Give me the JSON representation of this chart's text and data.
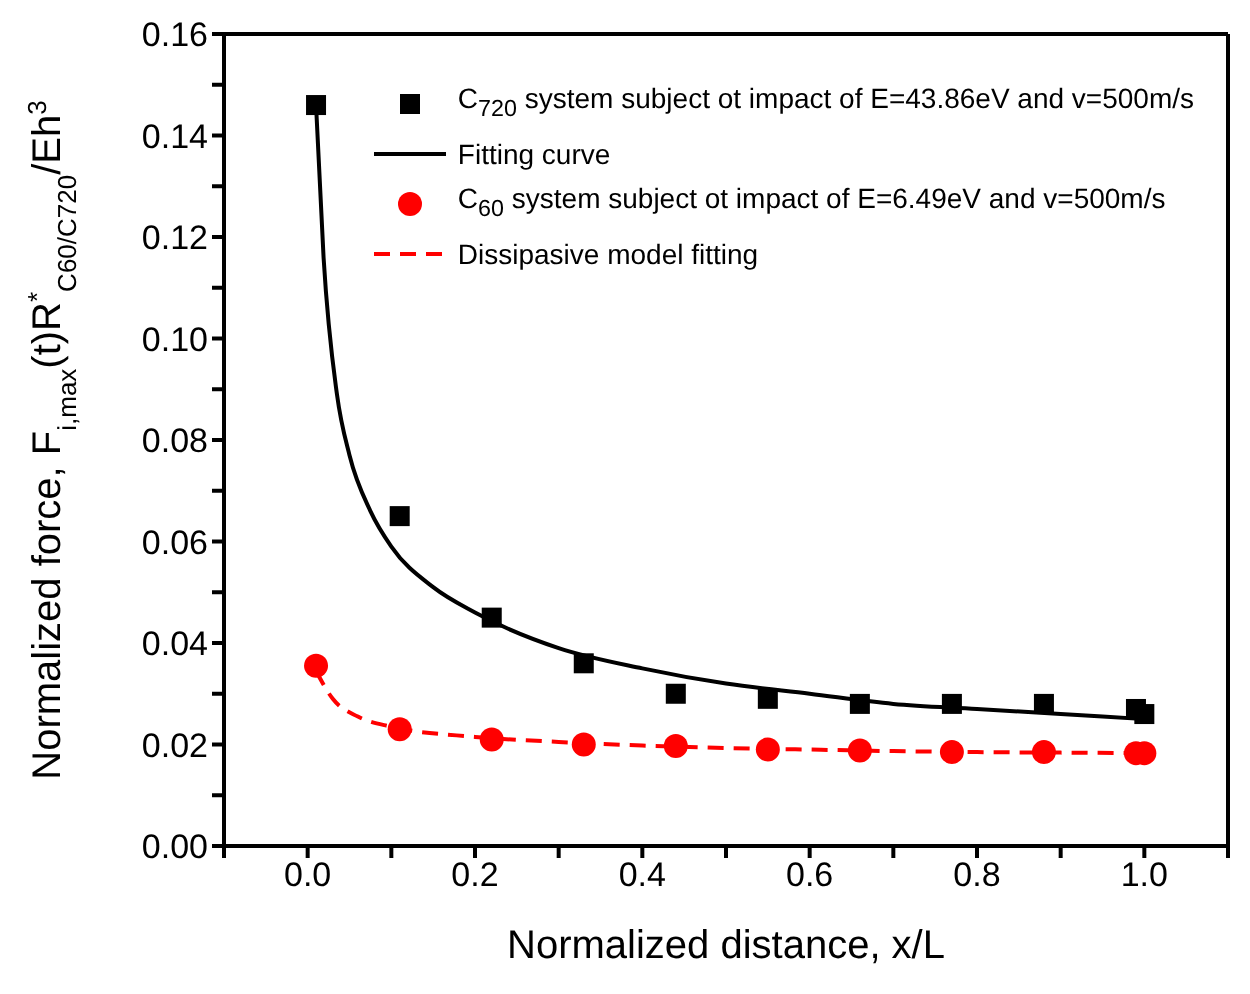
{
  "chart_data": {
    "type": "scatter",
    "xlabel": "Normalized distance, x/L",
    "ylabel": "Normalized force, F$_{i,max}$(t)R$^{*}$$_{C60/C720}$/Eh$^{3}$",
    "xlim": [
      -0.1,
      1.1
    ],
    "xticks": [
      {
        "value": -0.1,
        "label": null
      },
      {
        "value": 0,
        "label": "0.0"
      },
      {
        "value": 0.1,
        "label": null
      },
      0.2,
      {
        "value": 0.3,
        "label": null
      },
      0.4,
      {
        "value": 0.5,
        "label": null
      },
      0.6,
      {
        "value": 0.7,
        "label": null
      },
      0.8,
      {
        "value": 0.9,
        "label": null
      },
      {
        "value": 1,
        "label": "1.0"
      },
      {
        "value": 1.1,
        "label": null
      }
    ],
    "ylim": [
      0,
      0.16
    ],
    "yticks": [
      {
        "value": 0,
        "label": "0.00"
      },
      {
        "value": 0.01,
        "label": null
      },
      0.02,
      {
        "value": 0.03,
        "label": null
      },
      0.04,
      {
        "value": 0.05,
        "label": null
      },
      0.06,
      {
        "value": 0.07,
        "label": null
      },
      0.08,
      {
        "value": 0.09,
        "label": null
      },
      {
        "value": 0.1,
        "label": "0.10"
      },
      {
        "value": 0.11,
        "label": null
      },
      0.12,
      {
        "value": 0.13,
        "label": null
      },
      0.14,
      {
        "value": 0.15,
        "label": null
      },
      0.16
    ],
    "legend": "top right",
    "series": [
      {
        "name": "C$_{720}$ system subject ot impact of E=43.86eV and v=500m/s",
        "marker": "square",
        "color": "#000000",
        "x": [
          0.01,
          0.11,
          0.22,
          0.33,
          0.44,
          0.55,
          0.66,
          0.77,
          0.88,
          0.99,
          1.0
        ],
        "values": [
          0.146,
          0.065,
          0.045,
          0.036,
          0.03,
          0.029,
          0.028,
          0.028,
          0.028,
          0.027,
          0.026
        ]
      },
      {
        "name": "Fitting curve",
        "type": "line",
        "line_style": "solid",
        "color": "#000000",
        "x": [
          0.01,
          0.019,
          0.035,
          0.05,
          0.075,
          0.1,
          0.15,
          0.2,
          0.3,
          0.4,
          0.5,
          0.6,
          0.7,
          0.8,
          0.9,
          1.0
        ],
        "values": [
          0.146,
          0.116,
          0.089,
          0.077,
          0.066,
          0.059,
          0.051,
          0.046,
          0.039,
          0.035,
          0.032,
          0.03,
          0.028,
          0.027,
          0.026,
          0.025
        ]
      },
      {
        "name": "C$_{60}$ system subject ot impact of E=6.49eV and v=500m/s",
        "marker": "circle",
        "color": "#ff0000",
        "x": [
          0.01,
          0.11,
          0.22,
          0.33,
          0.44,
          0.55,
          0.66,
          0.77,
          0.88,
          0.99,
          1.0
        ],
        "values": [
          0.0355,
          0.023,
          0.021,
          0.02,
          0.0197,
          0.019,
          0.0188,
          0.0185,
          0.0185,
          0.0183,
          0.0183
        ]
      },
      {
        "name": "Dissipasive model fitting",
        "type": "line",
        "line_style": "dashed",
        "color": "#ff0000",
        "x": [
          0.01,
          0.03,
          0.06,
          0.1,
          0.2,
          0.3,
          0.4,
          0.5,
          0.6,
          0.7,
          0.8,
          0.9,
          1.0
        ],
        "values": [
          0.0345,
          0.029,
          0.0255,
          0.0235,
          0.0215,
          0.0205,
          0.0198,
          0.0193,
          0.019,
          0.0187,
          0.0185,
          0.0184,
          0.0183
        ]
      }
    ]
  }
}
